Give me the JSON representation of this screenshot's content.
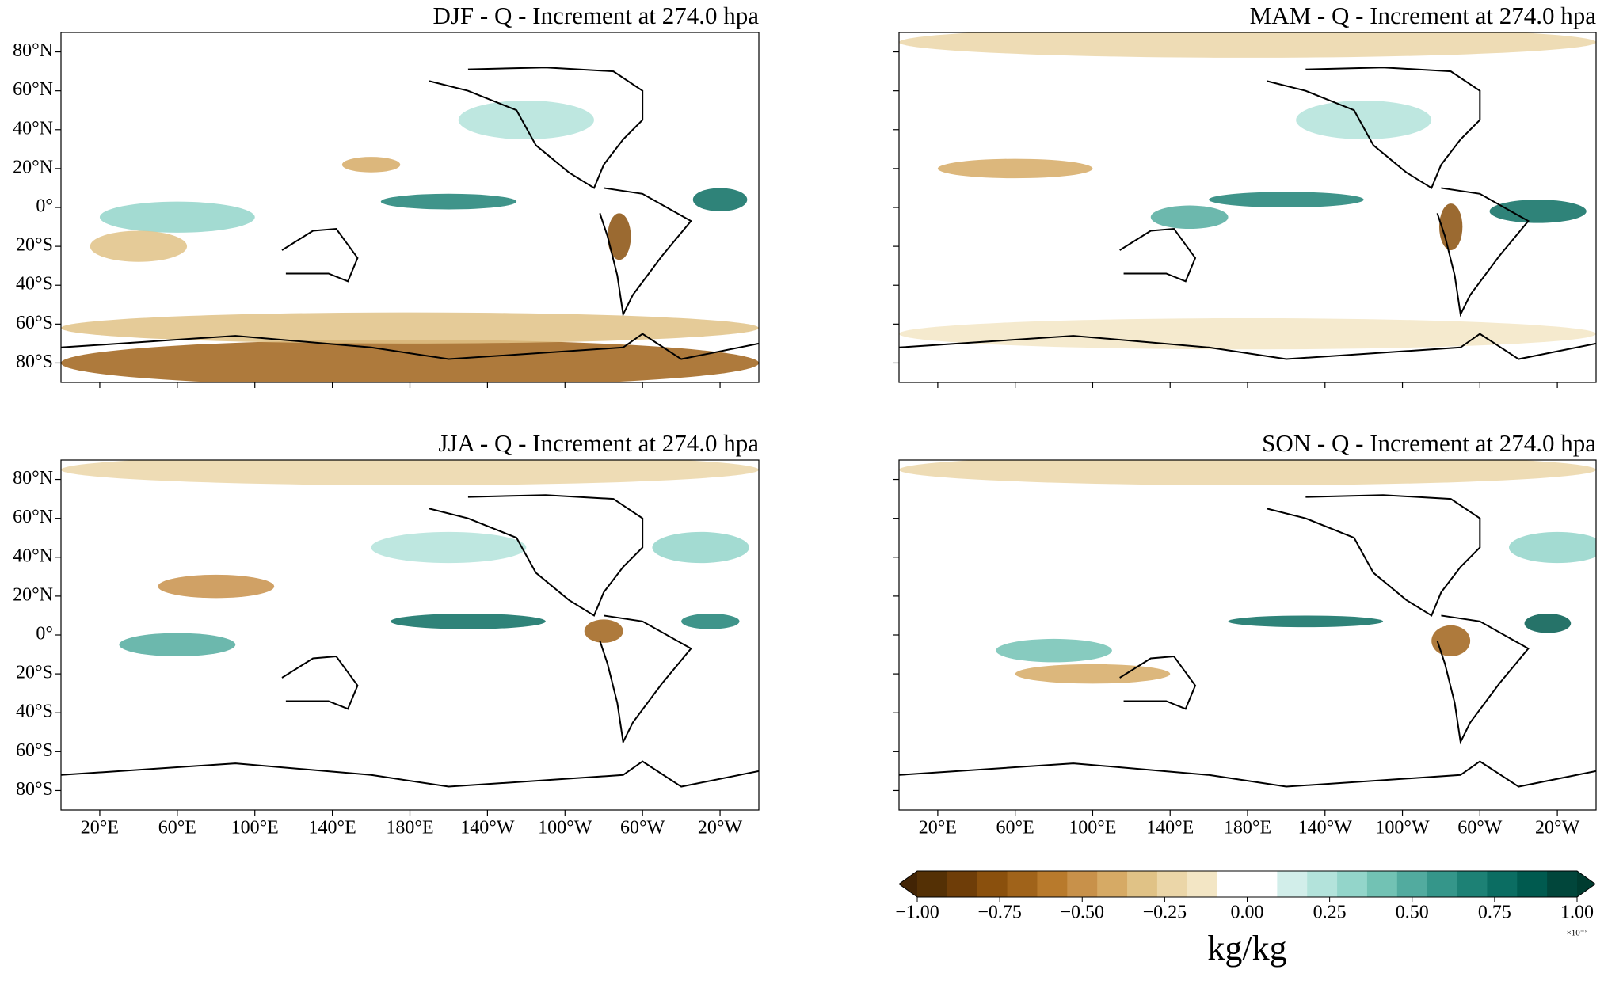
{
  "panels": [
    {
      "title": "DJF - Q - Increment at 274.0 hpa"
    },
    {
      "title": "MAM - Q - Increment at 274.0 hpa"
    },
    {
      "title": "JJA - Q - Increment at 274.0 hpa"
    },
    {
      "title": "SON - Q - Increment at 274.0 hpa"
    }
  ],
  "lon_range": [
    0,
    360
  ],
  "lat_range": [
    -90,
    90
  ],
  "lat_ticks": [
    {
      "value": 80,
      "label": "80°N"
    },
    {
      "value": 60,
      "label": "60°N"
    },
    {
      "value": 40,
      "label": "40°N"
    },
    {
      "value": 20,
      "label": "20°N"
    },
    {
      "value": 0,
      "label": "0°"
    },
    {
      "value": -20,
      "label": "20°S"
    },
    {
      "value": -40,
      "label": "40°S"
    },
    {
      "value": -60,
      "label": "60°S"
    },
    {
      "value": -80,
      "label": "80°S"
    }
  ],
  "lon_ticks": [
    {
      "value": 20,
      "label": "20°E"
    },
    {
      "value": 60,
      "label": "60°E"
    },
    {
      "value": 100,
      "label": "100°E"
    },
    {
      "value": 140,
      "label": "140°E"
    },
    {
      "value": 180,
      "label": "180°E"
    },
    {
      "value": 220,
      "label": "140°W"
    },
    {
      "value": 260,
      "label": "100°W"
    },
    {
      "value": 300,
      "label": "60°W"
    },
    {
      "value": 340,
      "label": "20°W"
    }
  ],
  "colorbar": {
    "range": [
      -1,
      1
    ],
    "ticks": [
      {
        "value": -1,
        "label": "−1.00"
      },
      {
        "value": -0.75,
        "label": "−0.75"
      },
      {
        "value": -0.5,
        "label": "−0.50"
      },
      {
        "value": -0.25,
        "label": "−0.25"
      },
      {
        "value": 0,
        "label": "0.00"
      },
      {
        "value": 0.25,
        "label": "0.25"
      },
      {
        "value": 0.5,
        "label": "0.50"
      },
      {
        "value": 0.75,
        "label": "0.75"
      },
      {
        "value": 1,
        "label": "1.00"
      }
    ],
    "colors": [
      "#543005",
      "#6e3d08",
      "#8a500d",
      "#a0631a",
      "#b87a2c",
      "#c8914a",
      "#d6aa65",
      "#e0c286",
      "#ebd6a8",
      "#f3e6c5",
      "#ffffff",
      "#ffffff",
      "#d2eeea",
      "#b3e3db",
      "#93d5ca",
      "#72c2b4",
      "#52ab9f",
      "#35968a",
      "#1d8175",
      "#0b6d62",
      "#005a4f",
      "#01463b"
    ],
    "under_color": "#422405",
    "over_color": "#003c30",
    "label": "kg/kg",
    "exponent_label": "×10⁻⁵"
  }
}
